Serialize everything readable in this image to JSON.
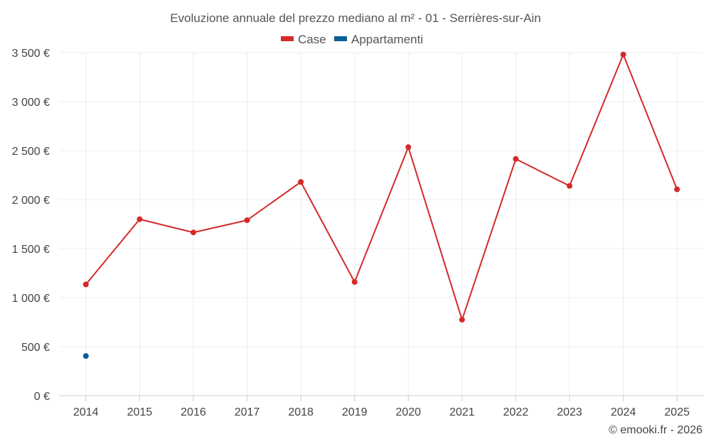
{
  "chart_data": {
    "type": "line",
    "title": "Evoluzione annuale del prezzo mediano al m² - 01 - Serrières-sur-Ain",
    "categories": [
      "2014",
      "2015",
      "2016",
      "2017",
      "2018",
      "2019",
      "2020",
      "2021",
      "2022",
      "2023",
      "2024",
      "2025"
    ],
    "ylim": [
      0,
      3500
    ],
    "yticks": [
      0,
      500,
      1000,
      1500,
      2000,
      2500,
      3000,
      3500
    ],
    "ytick_labels": [
      "0 €",
      "500 €",
      "1 000 €",
      "1 500 €",
      "2 000 €",
      "2 500 €",
      "3 000 €",
      "3 500 €"
    ],
    "grid": true,
    "legend_position": "top-center",
    "series": [
      {
        "name": "Case",
        "color": "#d42a2a",
        "values": [
          1135,
          1800,
          1665,
          1790,
          2180,
          1160,
          2535,
          775,
          2415,
          2140,
          3480,
          2105
        ]
      },
      {
        "name": "Appartamenti",
        "color": "#0b5f9a",
        "values": [
          405,
          null,
          null,
          null,
          null,
          null,
          null,
          null,
          null,
          null,
          null,
          null
        ]
      }
    ]
  },
  "credit": "© emooki.fr - 2026"
}
